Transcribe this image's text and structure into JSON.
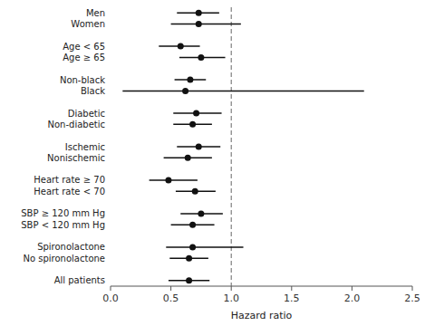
{
  "chart_data": {
    "type": "forest",
    "xlabel": "Hazard ratio",
    "categories": [
      "Men",
      "Women",
      null,
      "Age < 65",
      "Age ≥ 65",
      null,
      "Non-black",
      "Black",
      null,
      "Diabetic",
      "Non-diabetic",
      null,
      "Ischemic",
      "Nonischemic",
      null,
      "Heart rate ≥ 70",
      "Heart rate < 70",
      null,
      "SBP ≥ 120 mm Hg",
      "SBP < 120 mm Hg",
      null,
      "Spironolactone",
      "No spironolactone",
      null,
      "All patients"
    ],
    "values": [
      0.73,
      0.73,
      null,
      0.58,
      0.75,
      null,
      0.66,
      0.62,
      null,
      0.71,
      0.68,
      null,
      0.73,
      0.64,
      null,
      0.48,
      0.7,
      null,
      0.75,
      0.68,
      null,
      0.68,
      0.65,
      null,
      0.65
    ],
    "lower": [
      0.55,
      0.5,
      null,
      0.4,
      0.57,
      null,
      0.53,
      0.1,
      null,
      0.52,
      0.52,
      null,
      0.55,
      0.44,
      null,
      0.32,
      0.54,
      null,
      0.58,
      0.5,
      null,
      0.46,
      0.49,
      null,
      0.48
    ],
    "upper": [
      0.9,
      1.08,
      null,
      0.74,
      0.95,
      null,
      0.79,
      2.1,
      null,
      0.92,
      0.84,
      null,
      0.91,
      0.84,
      null,
      0.72,
      0.87,
      null,
      0.93,
      0.86,
      null,
      1.1,
      0.81,
      null,
      0.82
    ],
    "reference_line": 1.0,
    "xlim": [
      0.0,
      2.5
    ],
    "xticks": [
      {
        "value": 0.0,
        "label": "0.0"
      },
      0.5,
      {
        "value": 1.0,
        "label": "1.0"
      },
      1.5,
      {
        "value": 2.0,
        "label": "2.0"
      },
      2.5
    ],
    "color": "#111111",
    "grid": false
  }
}
